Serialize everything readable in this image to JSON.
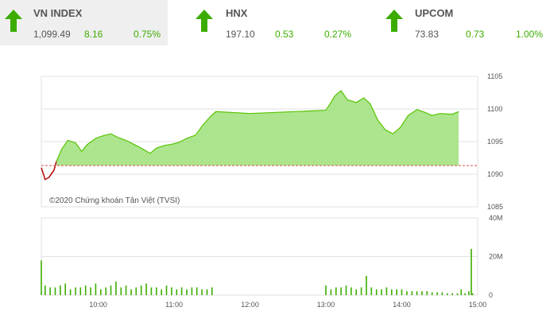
{
  "indices": [
    {
      "name": "VN INDEX",
      "value": "1,099.49",
      "change": "8.16",
      "percent": "0.75%",
      "direction": "up",
      "active": true
    },
    {
      "name": "HNX",
      "value": "197.10",
      "change": "0.53",
      "percent": "0.27%",
      "direction": "up",
      "active": false
    },
    {
      "name": "UPCOM",
      "value": "73.83",
      "change": "0.73",
      "percent": "1.00%",
      "direction": "up",
      "active": false
    }
  ],
  "colors": {
    "up": "#3cad00",
    "area_fill": "#9fe07a",
    "area_line": "#55c400",
    "reference_line": "#d9534f",
    "below_line": "#b70000",
    "volume": "#3cad00",
    "grid": "#e2e2e2"
  },
  "chart_data": [
    {
      "type": "area",
      "copyright": "©2020 Chứng khoán Tân Việt (TVSI)",
      "reference": 1091.33,
      "ylim": [
        1085,
        1105
      ],
      "y_ticks": [
        "1105",
        "1100",
        "1095",
        "1090",
        "1085"
      ],
      "x_ticks": [
        "10:00",
        "11:00",
        "12:00",
        "13:00",
        "14:00",
        "15:00"
      ],
      "x_domain": [
        "09:15",
        "15:00"
      ],
      "points": [
        [
          "09:15",
          1091.0
        ],
        [
          "09:18",
          1089.2
        ],
        [
          "09:21",
          1089.5
        ],
        [
          "09:25",
          1090.6
        ],
        [
          "09:27",
          1092.0
        ],
        [
          "09:31",
          1093.8
        ],
        [
          "09:36",
          1095.2
        ],
        [
          "09:42",
          1094.8
        ],
        [
          "09:47",
          1093.5
        ],
        [
          "09:51",
          1094.5
        ],
        [
          "09:58",
          1095.5
        ],
        [
          "10:04",
          1095.9
        ],
        [
          "10:10",
          1096.2
        ],
        [
          "10:16",
          1095.6
        ],
        [
          "10:22",
          1095.2
        ],
        [
          "10:28",
          1094.6
        ],
        [
          "10:34",
          1094.0
        ],
        [
          "10:41",
          1093.2
        ],
        [
          "10:46",
          1094.0
        ],
        [
          "10:52",
          1094.4
        ],
        [
          "10:58",
          1094.6
        ],
        [
          "11:04",
          1094.9
        ],
        [
          "11:10",
          1095.5
        ],
        [
          "11:17",
          1096.0
        ],
        [
          "11:23",
          1097.6
        ],
        [
          "11:29",
          1098.9
        ],
        [
          "11:33",
          1099.6
        ],
        [
          "12:00",
          1099.3
        ],
        [
          "13:00",
          1099.8
        ],
        [
          "13:03",
          1100.7
        ],
        [
          "13:07",
          1102.0
        ],
        [
          "13:12",
          1102.8
        ],
        [
          "13:17",
          1101.4
        ],
        [
          "13:24",
          1101.0
        ],
        [
          "13:30",
          1101.7
        ],
        [
          "13:35",
          1100.8
        ],
        [
          "13:41",
          1098.3
        ],
        [
          "13:47",
          1096.8
        ],
        [
          "13:53",
          1096.2
        ],
        [
          "13:59",
          1097.2
        ],
        [
          "14:05",
          1099.0
        ],
        [
          "14:12",
          1099.9
        ],
        [
          "14:18",
          1099.5
        ],
        [
          "14:24",
          1099.0
        ],
        [
          "14:30",
          1099.3
        ],
        [
          "14:40",
          1099.2
        ],
        [
          "14:45",
          1099.6
        ]
      ]
    },
    {
      "type": "bar",
      "ylim": [
        0,
        40
      ],
      "y_ticks": [
        "40M",
        "20M",
        "0"
      ],
      "x_domain": [
        "09:15",
        "15:00"
      ],
      "series": [
        {
          "x": [
            "09:15",
            "09:18",
            "09:22",
            "09:26",
            "09:30",
            "09:34",
            "09:38",
            "09:42",
            "09:46",
            "09:50",
            "09:54",
            "09:58",
            "10:02",
            "10:06",
            "10:10",
            "10:14",
            "10:18",
            "10:22",
            "10:26",
            "10:30",
            "10:34",
            "10:38",
            "10:42",
            "10:46",
            "10:50",
            "10:54",
            "10:58",
            "11:02",
            "11:06",
            "11:10",
            "11:14",
            "11:18",
            "11:22",
            "11:26",
            "11:30",
            "13:00",
            "13:04",
            "13:08",
            "13:12",
            "13:16",
            "13:20",
            "13:24",
            "13:28",
            "13:32",
            "13:36",
            "13:40",
            "13:44",
            "13:48",
            "13:52",
            "13:56",
            "14:00",
            "14:04",
            "14:08",
            "14:12",
            "14:16",
            "14:20",
            "14:24",
            "14:28",
            "14:32",
            "14:36",
            "14:40",
            "14:44",
            "14:47",
            "14:50",
            "14:53",
            "14:55",
            "14:56"
          ],
          "values": [
            18,
            5,
            4,
            4,
            5,
            6,
            3,
            4,
            4,
            5,
            4,
            6,
            3,
            4,
            5,
            7,
            4,
            5,
            3,
            4,
            5,
            6,
            4,
            4,
            3,
            5,
            4,
            3,
            4,
            3,
            4,
            4,
            3,
            3,
            4,
            5,
            3,
            4,
            4,
            5,
            4,
            3,
            4,
            10,
            4,
            3,
            3,
            4,
            3,
            3,
            3,
            2,
            2,
            2,
            2,
            2,
            1.5,
            1.5,
            1.5,
            1,
            1,
            1,
            3,
            1,
            2,
            24,
            1
          ]
        }
      ]
    }
  ]
}
